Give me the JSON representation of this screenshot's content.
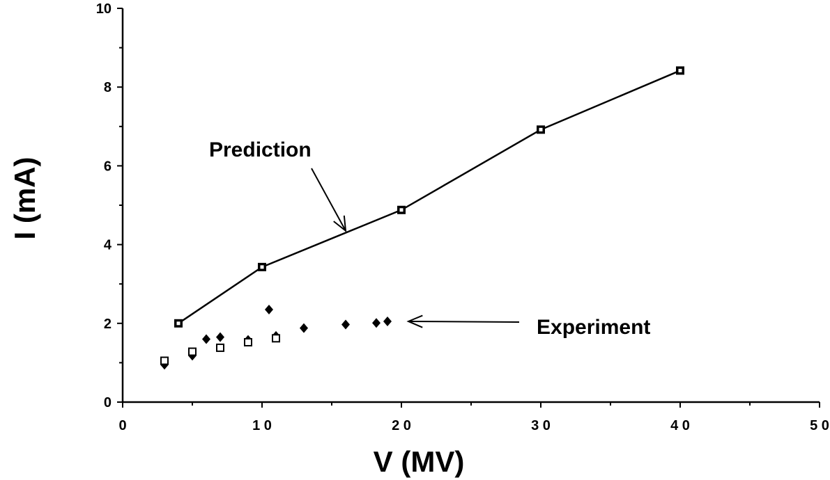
{
  "chart_data": {
    "type": "scatter",
    "title": "",
    "xlabel": "V (MV)",
    "ylabel": "I (mA)",
    "xlim": [
      0,
      50
    ],
    "ylim": [
      0,
      10
    ],
    "x_ticks": [
      "0",
      "1 0",
      "2 0",
      "3 0",
      "4 0",
      "5 0"
    ],
    "y_ticks": [
      "0",
      "2",
      "4",
      "6",
      "8",
      "10"
    ],
    "grid": false,
    "legend": "none",
    "series": [
      {
        "marker": "square",
        "connected": true,
        "color": "#000000",
        "x": [
          4,
          10,
          20,
          30,
          40
        ],
        "y": [
          2.0,
          3.43,
          4.88,
          6.92,
          8.42
        ]
      },
      {
        "marker": "diamond",
        "connected": false,
        "color": "#000000",
        "x": [
          3,
          5,
          6,
          7,
          9,
          10.5,
          11,
          13,
          16,
          18.2,
          19
        ],
        "y": [
          0.95,
          1.18,
          1.6,
          1.65,
          1.58,
          2.35,
          1.68,
          1.88,
          1.97,
          2.01,
          2.05
        ]
      },
      {
        "marker": "open-square",
        "connected": false,
        "color": "#000000",
        "x": [
          3,
          5,
          7,
          9,
          11
        ],
        "y": [
          1.05,
          1.28,
          1.38,
          1.52,
          1.62
        ]
      }
    ],
    "annotations": [
      {
        "text": "Prediction",
        "arrow_to": [
          16,
          4.35
        ]
      },
      {
        "text": "Experiment",
        "arrow_to": [
          20.5,
          2.05
        ]
      }
    ]
  }
}
